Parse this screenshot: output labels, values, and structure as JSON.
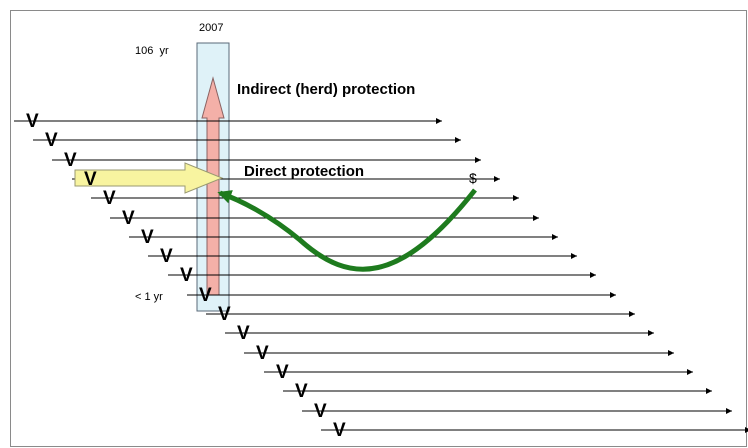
{
  "labels": {
    "year_top": "2007",
    "age_top": "106  yr",
    "indirect": "Indirect (herd) protection",
    "direct": "Direct protection",
    "age_bottom": "< 1 yr",
    "dollar": "$"
  },
  "cohort_marker": "V",
  "colors": {
    "timeline": "#000000",
    "column_fill": "#dff2f8",
    "column_stroke": "#5a6a78",
    "herd_arrow_fill": "#f4b0a8",
    "herd_arrow_stroke": "#8a6262",
    "direct_arrow_fill": "#f8f4a0",
    "direct_arrow_stroke": "#9a9a72",
    "curve": "#1e7b1e"
  }
}
